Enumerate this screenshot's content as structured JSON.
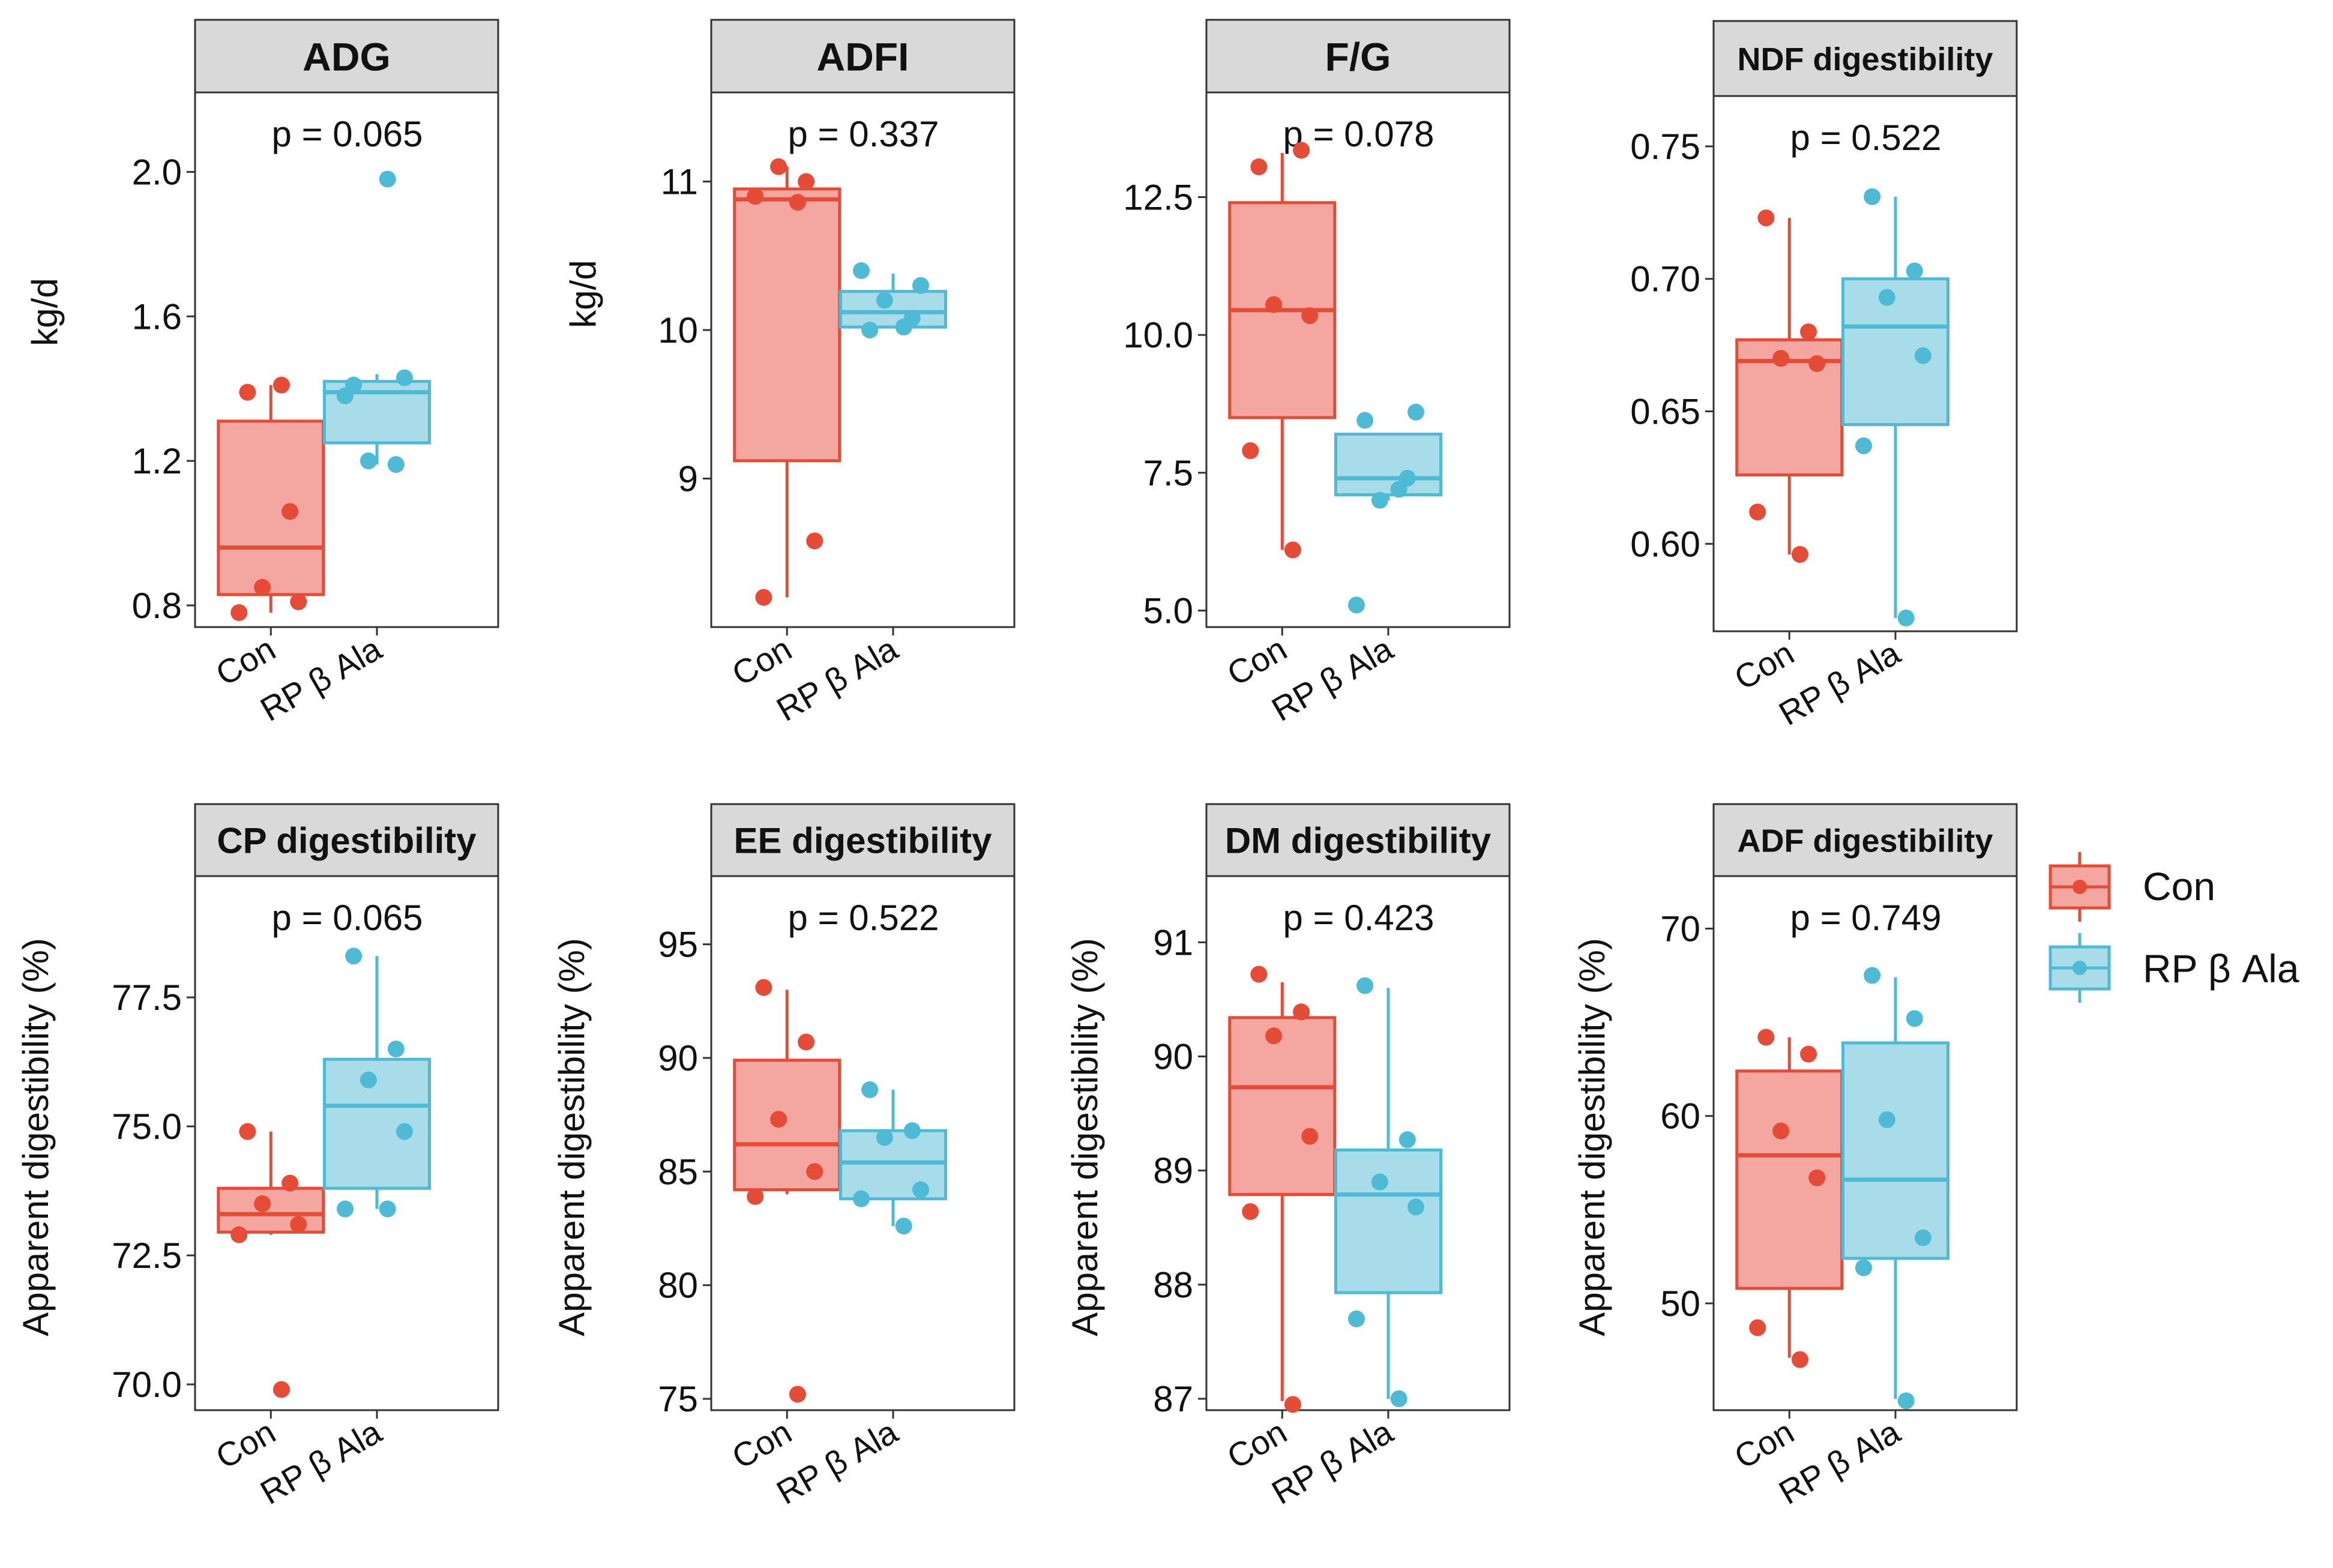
{
  "groups": [
    "Con",
    "RP β Ala"
  ],
  "colors": {
    "Con": {
      "line": "#E64B35",
      "fill": "#F4A6A0",
      "point": "#E64B35"
    },
    "RP β Ala": {
      "line": "#4DBBD5",
      "fill": "#A8DCE9",
      "point": "#4DBBD5"
    }
  },
  "legend": {
    "items": [
      "Con",
      "RP β Ala"
    ]
  },
  "chart_data": [
    {
      "type": "box",
      "title": "ADG",
      "ylabel": "kg/d",
      "p_label": "p = 0.065",
      "ylim": [
        0.74,
        2.22
      ],
      "yticks": [
        0.8,
        1.2,
        1.6,
        2.0
      ],
      "tick_labels": [
        "0.8",
        "1.2",
        "1.6",
        "2.0"
      ],
      "categories": [
        "Con",
        "RP β Ala"
      ],
      "boxes": [
        {
          "group": "Con",
          "min": 0.78,
          "q1": 0.83,
          "median": 0.96,
          "q3": 1.31,
          "max": 1.41
        },
        {
          "group": "RP β Ala",
          "min": 1.19,
          "q1": 1.25,
          "median": 1.39,
          "q3": 1.42,
          "max": 1.44
        }
      ],
      "points": [
        {
          "group": "Con",
          "values": [
            1.39,
            1.06,
            0.85,
            0.81,
            0.78,
            1.41
          ]
        },
        {
          "group": "RP β Ala",
          "values": [
            1.41,
            1.19,
            1.2,
            1.43,
            1.38,
            1.98
          ]
        }
      ]
    },
    {
      "type": "box",
      "title": "ADFI",
      "ylabel": "kg/d",
      "p_label": "p = 0.337",
      "ylim": [
        8.0,
        11.6
      ],
      "yticks": [
        9,
        10,
        11
      ],
      "tick_labels": [
        "9",
        "10",
        "11"
      ],
      "categories": [
        "Con",
        "RP β Ala"
      ],
      "boxes": [
        {
          "group": "Con",
          "min": 8.2,
          "q1": 9.12,
          "median": 10.88,
          "q3": 10.95,
          "max": 11.1
        },
        {
          "group": "RP β Ala",
          "min": 10.02,
          "q1": 10.02,
          "median": 10.12,
          "q3": 10.26,
          "max": 10.38
        }
      ],
      "points": [
        {
          "group": "Con",
          "values": [
            8.2,
            11.0,
            11.1,
            8.58,
            10.9,
            10.86
          ]
        },
        {
          "group": "RP β Ala",
          "values": [
            10.0,
            10.08,
            10.2,
            10.3,
            10.4,
            10.02
          ]
        }
      ]
    },
    {
      "type": "box",
      "title": "F/G",
      "ylabel": "",
      "p_label": "p = 0.078",
      "ylim": [
        4.7,
        14.4
      ],
      "yticks": [
        5.0,
        7.5,
        10.0,
        12.5
      ],
      "tick_labels": [
        "5.0",
        "7.5",
        "10.0",
        "12.5"
      ],
      "categories": [
        "Con",
        "RP β Ala"
      ],
      "boxes": [
        {
          "group": "Con",
          "min": 6.1,
          "q1": 8.5,
          "median": 10.45,
          "q3": 12.4,
          "max": 13.3
        },
        {
          "group": "RP β Ala",
          "min": 7.0,
          "q1": 7.1,
          "median": 7.4,
          "q3": 8.2,
          "max": 8.2
        }
      ],
      "points": [
        {
          "group": "Con",
          "values": [
            13.05,
            13.35,
            10.55,
            10.35,
            7.9,
            6.1
          ]
        },
        {
          "group": "RP β Ala",
          "values": [
            8.45,
            7.4,
            7.0,
            8.6,
            5.1,
            7.2
          ]
        }
      ]
    },
    {
      "type": "box",
      "title": "NDF digestibility",
      "ylabel": "",
      "p_label": "p = 0.522",
      "ylim": [
        0.567,
        0.769
      ],
      "yticks": [
        0.6,
        0.65,
        0.7,
        0.75
      ],
      "tick_labels": [
        "0.60",
        "0.65",
        "0.70",
        "0.75"
      ],
      "categories": [
        "Con",
        "RP β Ala"
      ],
      "boxes": [
        {
          "group": "Con",
          "min": 0.596,
          "q1": 0.626,
          "median": 0.669,
          "q3": 0.677,
          "max": 0.723
        },
        {
          "group": "RP β Ala",
          "min": 0.572,
          "q1": 0.645,
          "median": 0.682,
          "q3": 0.7,
          "max": 0.731
        }
      ],
      "points": [
        {
          "group": "Con",
          "values": [
            0.723,
            0.68,
            0.67,
            0.668,
            0.612,
            0.596
          ]
        },
        {
          "group": "RP β Ala",
          "values": [
            0.731,
            0.703,
            0.693,
            0.671,
            0.637,
            0.572
          ]
        }
      ]
    },
    {
      "type": "box",
      "title": "CP digestibility",
      "ylabel": "Apparent digestibility (%)",
      "p_label": "p = 0.065",
      "ylim": [
        69.5,
        79.85
      ],
      "yticks": [
        70.0,
        72.5,
        75.0,
        77.5
      ],
      "tick_labels": [
        "70.0",
        "72.5",
        "75.0",
        "77.5"
      ],
      "categories": [
        "Con",
        "RP β Ala"
      ],
      "boxes": [
        {
          "group": "Con",
          "min": 72.9,
          "q1": 72.95,
          "median": 73.3,
          "q3": 73.8,
          "max": 74.9
        },
        {
          "group": "RP β Ala",
          "min": 73.4,
          "q1": 73.8,
          "median": 75.4,
          "q3": 76.3,
          "max": 78.3
        }
      ],
      "points": [
        {
          "group": "Con",
          "values": [
            74.9,
            73.9,
            73.5,
            73.1,
            72.9,
            69.9
          ]
        },
        {
          "group": "RP β Ala",
          "values": [
            78.3,
            76.5,
            75.9,
            74.9,
            73.4,
            73.4
          ]
        }
      ]
    },
    {
      "type": "box",
      "title": "EE digestibility",
      "ylabel": "Apparent digestibility (%)",
      "p_label": "p = 0.522",
      "ylim": [
        74.5,
        98.0
      ],
      "yticks": [
        75,
        80,
        85,
        90,
        95
      ],
      "tick_labels": [
        "75",
        "80",
        "85",
        "90",
        "95"
      ],
      "categories": [
        "Con",
        "RP β Ala"
      ],
      "boxes": [
        {
          "group": "Con",
          "min": 84.0,
          "q1": 84.2,
          "median": 86.2,
          "q3": 89.9,
          "max": 93.0
        },
        {
          "group": "RP β Ala",
          "min": 82.6,
          "q1": 83.8,
          "median": 85.4,
          "q3": 86.8,
          "max": 88.6
        }
      ],
      "points": [
        {
          "group": "Con",
          "values": [
            93.1,
            90.7,
            87.3,
            85.0,
            83.9,
            75.2
          ]
        },
        {
          "group": "RP β Ala",
          "values": [
            88.6,
            86.8,
            86.5,
            84.2,
            83.8,
            82.6
          ]
        }
      ]
    },
    {
      "type": "box",
      "title": "DM digestibility",
      "ylabel": "Apparent digestibility (%)",
      "p_label": "p = 0.423",
      "ylim": [
        86.9,
        91.58
      ],
      "yticks": [
        87,
        88,
        89,
        90,
        91
      ],
      "tick_labels": [
        "87",
        "88",
        "89",
        "90",
        "91"
      ],
      "categories": [
        "Con",
        "RP β Ala"
      ],
      "boxes": [
        {
          "group": "Con",
          "min": 86.98,
          "q1": 88.79,
          "median": 89.73,
          "q3": 90.34,
          "max": 90.65
        },
        {
          "group": "RP β Ala",
          "min": 87.0,
          "q1": 87.93,
          "median": 88.79,
          "q3": 89.18,
          "max": 90.6
        }
      ],
      "points": [
        {
          "group": "Con",
          "values": [
            90.72,
            90.39,
            90.18,
            89.3,
            88.64,
            86.95
          ]
        },
        {
          "group": "RP β Ala",
          "values": [
            90.62,
            89.27,
            88.9,
            88.68,
            87.7,
            87.0
          ]
        }
      ]
    },
    {
      "type": "box",
      "title": "ADF digestibility",
      "ylabel": "Apparent digestibility (%)",
      "p_label": "p = 0.749",
      "ylim": [
        44.3,
        72.8
      ],
      "yticks": [
        50,
        60,
        70
      ],
      "tick_labels": [
        "50",
        "60",
        "70"
      ],
      "categories": [
        "Con",
        "RP β Ala"
      ],
      "boxes": [
        {
          "group": "Con",
          "min": 47.1,
          "q1": 50.8,
          "median": 57.9,
          "q3": 62.4,
          "max": 64.2
        },
        {
          "group": "RP β Ala",
          "min": 44.9,
          "q1": 52.4,
          "median": 56.6,
          "q3": 63.9,
          "max": 67.4
        }
      ],
      "points": [
        {
          "group": "Con",
          "values": [
            64.2,
            63.3,
            59.2,
            56.7,
            48.7,
            47.0
          ]
        },
        {
          "group": "RP β Ala",
          "values": [
            67.5,
            65.2,
            59.8,
            53.5,
            51.9,
            44.8
          ]
        }
      ]
    }
  ]
}
